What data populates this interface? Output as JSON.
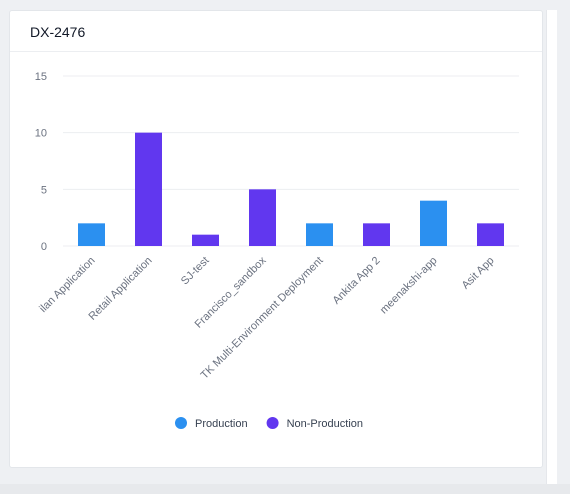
{
  "header": {
    "title": "DX-2476"
  },
  "colors": {
    "production": "#2b90f0",
    "non_production": "#6137ef"
  },
  "chart_data": {
    "type": "bar",
    "categories": [
      "ilan Application",
      "Retail Application",
      "SJ-test",
      "Francisco_sandbox",
      "TK Multi-Environment Deployment",
      "Ankita App 2",
      "meenakshi-app",
      "Asit App"
    ],
    "values": [
      2,
      10,
      1,
      5,
      2,
      2,
      4,
      2
    ],
    "bar_series": [
      "Production",
      "Non-Production",
      "Non-Production",
      "Non-Production",
      "Production",
      "Non-Production",
      "Production",
      "Non-Production"
    ],
    "series": [
      {
        "name": "Production",
        "color": "#2b90f0"
      },
      {
        "name": "Non-Production",
        "color": "#6137ef"
      }
    ],
    "yticks": [
      0,
      5,
      10,
      15
    ],
    "ylim": [
      0,
      15
    ],
    "grid": true,
    "legend_position": "bottom"
  }
}
